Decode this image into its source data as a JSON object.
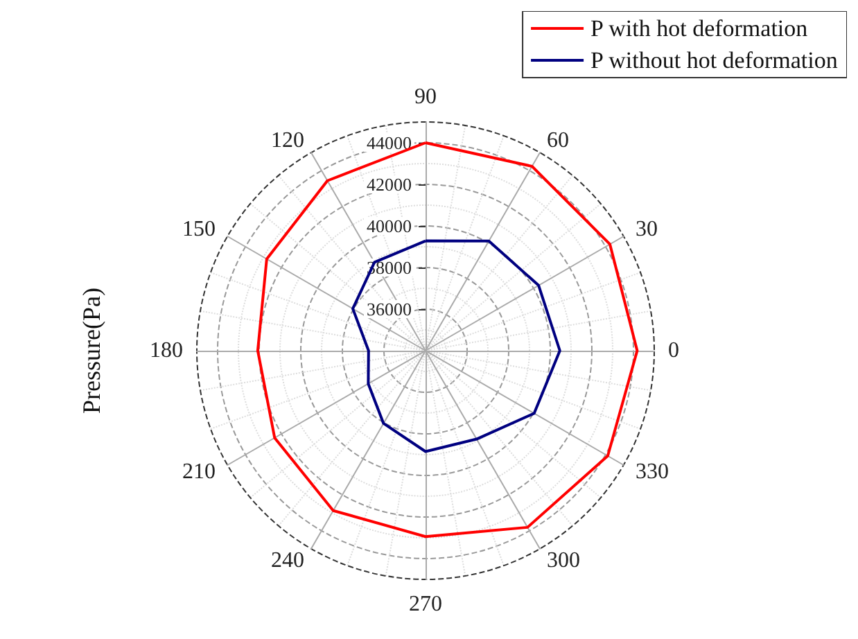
{
  "chart_data": {
    "type": "radar",
    "ylabel": "Pressure(Pa)",
    "categories": [
      "90",
      "60",
      "30",
      "0",
      "330",
      "300",
      "270",
      "240",
      "210",
      "180",
      "150",
      "120"
    ],
    "ylim": [
      34000,
      45000
    ],
    "yticks": [
      36000,
      38000,
      40000,
      42000,
      44000
    ],
    "grid": true,
    "legend": "top right",
    "marker": "none",
    "line_style": "solid",
    "series": [
      {
        "name": "P with hot deformation",
        "color": "#ff0000",
        "values": [
          44000,
          44240,
          44240,
          44180,
          44120,
          43810,
          42940,
          42880,
          42380,
          42070,
          42820,
          43440
        ]
      },
      {
        "name": "P without hot deformation",
        "color": "#000080",
        "values": [
          39280,
          40090,
          40280,
          40460,
          40030,
          38910,
          38850,
          38040,
          37180,
          36740,
          38040,
          38910
        ]
      }
    ]
  }
}
